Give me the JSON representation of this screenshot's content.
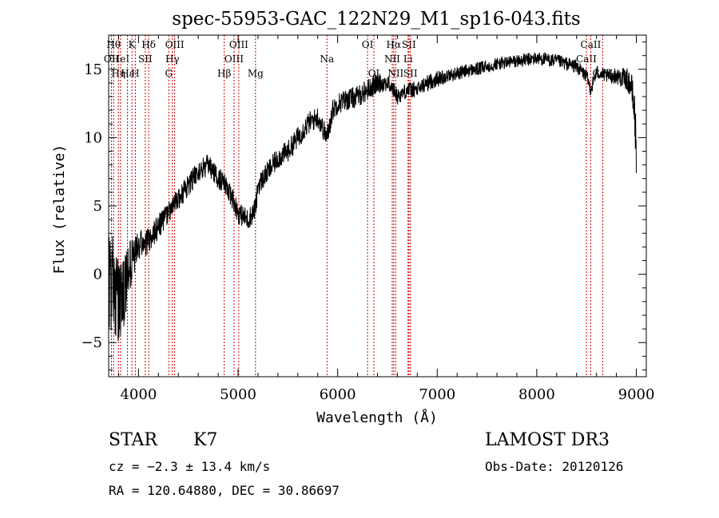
{
  "chart_data": {
    "type": "line",
    "title": "spec-55953-GAC_122N29_M1_sp16-043.fits",
    "xlabel": "Wavelength (Å)",
    "ylabel": "Flux (relative)",
    "xlim": [
      3700,
      9100
    ],
    "ylim": [
      -7.5,
      17.5
    ],
    "x_ticks": [
      4000,
      5000,
      6000,
      7000,
      8000,
      9000
    ],
    "x_tick_labels": [
      "4000",
      "5000",
      "6000",
      "7000",
      "8000",
      "9000"
    ],
    "y_ticks": [
      -5,
      0,
      5,
      10,
      15
    ],
    "y_tick_labels": [
      "−5",
      "0",
      "5",
      "10",
      "15"
    ],
    "grid": false,
    "series": [
      {
        "name": "spectrum",
        "color": "#000000",
        "x": [
          3700,
          3750,
          3800,
          3850,
          3900,
          3950,
          4000,
          4100,
          4200,
          4300,
          4400,
          4500,
          4600,
          4700,
          4750,
          4800,
          4850,
          4900,
          4950,
          5000,
          5100,
          5150,
          5180,
          5200,
          5300,
          5400,
          5500,
          5600,
          5700,
          5800,
          5893,
          5950,
          6000,
          6100,
          6200,
          6300,
          6400,
          6500,
          6563,
          6600,
          6700,
          6800,
          6900,
          7000,
          7100,
          7200,
          7300,
          7400,
          7500,
          7600,
          7700,
          7800,
          7900,
          8000,
          8100,
          8200,
          8300,
          8400,
          8500,
          8542,
          8600,
          8700,
          8800,
          8900,
          8950,
          8980,
          9000
        ],
        "y": [
          0.0,
          -1.0,
          -2.0,
          -1.5,
          0.5,
          1.0,
          2.0,
          2.5,
          3.5,
          4.5,
          5.5,
          6.5,
          7.5,
          8.0,
          7.5,
          7.0,
          6.8,
          6.0,
          5.5,
          4.5,
          4.0,
          4.5,
          5.0,
          6.5,
          7.5,
          8.5,
          9.0,
          10.0,
          11.0,
          11.5,
          10.0,
          12.0,
          12.5,
          12.8,
          13.0,
          13.5,
          14.0,
          14.0,
          13.5,
          13.0,
          13.5,
          13.5,
          14.0,
          14.3,
          14.5,
          14.7,
          14.9,
          15.0,
          15.2,
          15.4,
          15.5,
          15.6,
          15.7,
          15.8,
          15.7,
          15.6,
          15.4,
          15.2,
          14.5,
          13.5,
          14.8,
          14.5,
          14.5,
          14.3,
          13.8,
          12.0,
          9.0
        ],
        "noise": [
          4.0,
          3.5,
          3.0,
          2.5,
          2.0,
          1.5,
          1.2,
          1.0,
          0.9,
          0.8,
          0.8,
          0.8,
          0.8,
          0.8,
          0.8,
          0.8,
          0.8,
          0.8,
          0.8,
          0.8,
          0.8,
          0.8,
          0.8,
          0.8,
          0.8,
          0.8,
          0.8,
          0.8,
          0.8,
          0.8,
          0.8,
          0.8,
          0.8,
          0.8,
          0.8,
          0.8,
          0.8,
          0.6,
          0.6,
          0.6,
          0.6,
          0.6,
          0.6,
          0.6,
          0.5,
          0.5,
          0.5,
          0.5,
          0.5,
          0.5,
          0.5,
          0.5,
          0.5,
          0.5,
          0.5,
          0.5,
          0.5,
          0.5,
          0.5,
          0.5,
          0.5,
          0.5,
          0.6,
          0.8,
          1.0,
          1.5,
          2.0
        ]
      }
    ],
    "line_markers": [
      {
        "wavelength": 3750,
        "label": "Hθ",
        "row": 0
      },
      {
        "wavelength": 3728,
        "label": "OII",
        "row": 1
      },
      {
        "wavelength": 3798,
        "label": "Hη",
        "row": 2
      },
      {
        "wavelength": 3820,
        "label": "HeI",
        "row": 1
      },
      {
        "wavelength": 3889,
        "label": "Hε",
        "row": 2
      },
      {
        "wavelength": 3934,
        "label": "K",
        "row": 0
      },
      {
        "wavelength": 3968,
        "label": "H",
        "row": 2
      },
      {
        "wavelength": 4068,
        "label": "SII",
        "row": 1
      },
      {
        "wavelength": 4102,
        "label": "Hδ",
        "row": 0
      },
      {
        "wavelength": 4304,
        "label": "G",
        "row": 2
      },
      {
        "wavelength": 4340,
        "label": "Hγ",
        "row": 1
      },
      {
        "wavelength": 4363,
        "label": "OIII",
        "row": 0
      },
      {
        "wavelength": 4861,
        "label": "Hβ",
        "row": 2
      },
      {
        "wavelength": 4959,
        "label": "OIII",
        "row": 1
      },
      {
        "wavelength": 5007,
        "label": "OIII",
        "row": 0
      },
      {
        "wavelength": 5175,
        "label": "Mg",
        "row": 2
      },
      {
        "wavelength": 5893,
        "label": "Na",
        "row": 1
      },
      {
        "wavelength": 6300,
        "label": "OI",
        "row": 0
      },
      {
        "wavelength": 6364,
        "label": "OI",
        "row": 2
      },
      {
        "wavelength": 6548,
        "label": "NII",
        "row": 1
      },
      {
        "wavelength": 6563,
        "label": "Hα",
        "row": 0
      },
      {
        "wavelength": 6583,
        "label": "NII",
        "row": 2
      },
      {
        "wavelength": 6707,
        "label": "Li",
        "row": 1
      },
      {
        "wavelength": 6716,
        "label": "SII",
        "row": 0
      },
      {
        "wavelength": 6731,
        "label": "SII",
        "row": 2
      },
      {
        "wavelength": 8498,
        "label": "CaII",
        "row": 1
      },
      {
        "wavelength": 8542,
        "label": "CaII",
        "row": 0
      },
      {
        "wavelength": 8662,
        "label": "CaII",
        "row": 2
      }
    ],
    "line_marker_color": "#cc0000"
  },
  "info": {
    "object_class": "STAR",
    "subclass": "K7",
    "cz": "cz = −2.3 ± 13.4 km/s",
    "coords": "RA = 120.64880, DEC =  30.86697",
    "survey": "LAMOST DR3",
    "obs_date": "Obs-Date: 20120126"
  }
}
